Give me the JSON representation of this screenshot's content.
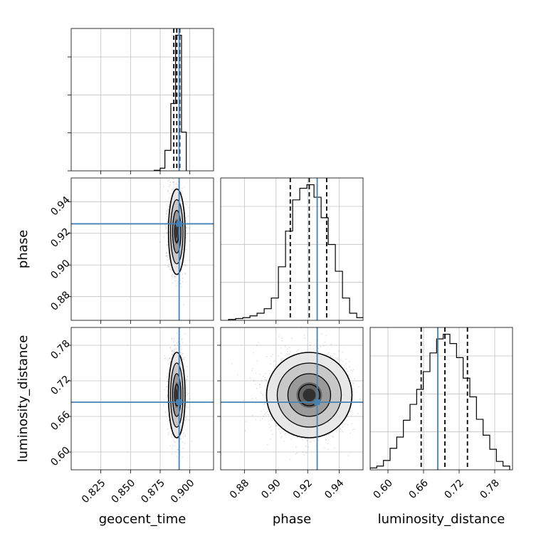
{
  "chart_data": {
    "type": "corner",
    "parameters": [
      "geocent_time",
      "phase",
      "luminosity_distance"
    ],
    "axes": {
      "geocent_time": {
        "range": [
          0.8,
          0.92
        ],
        "ticks": [
          0.825,
          0.85,
          0.875,
          0.9
        ],
        "tick_labels": [
          "0.825",
          "0.850",
          "0.875",
          "0.900"
        ],
        "xlabel": "geocent_time"
      },
      "phase": {
        "range": [
          0.865,
          0.955
        ],
        "ticks": [
          0.88,
          0.9,
          0.92,
          0.94
        ],
        "tick_labels": [
          "0.88",
          "0.90",
          "0.92",
          "0.94"
        ],
        "xlabel": "phase",
        "ylabel": "phase"
      },
      "luminosity_distance": {
        "range": [
          0.57,
          0.81
        ],
        "ticks": [
          0.6,
          0.66,
          0.72,
          0.78
        ],
        "tick_labels": [
          "0.60",
          "0.66",
          "0.72",
          "0.78"
        ],
        "xlabel": "luminosity_distance",
        "ylabel": "luminosity_distance"
      }
    },
    "truths": {
      "geocent_time": 0.891,
      "phase": 0.926,
      "luminosity_distance": 0.684
    },
    "quantiles": {
      "geocent_time": [
        0.8865,
        0.889,
        0.8915
      ],
      "phase": [
        0.909,
        0.921,
        0.932
      ],
      "luminosity_distance": [
        0.656,
        0.696,
        0.734
      ]
    },
    "histograms": {
      "geocent_time": {
        "edges": [
          0.87,
          0.875,
          0.879,
          0.884,
          0.888,
          0.893,
          0.897
        ],
        "counts": [
          1,
          5,
          38,
          125,
          252,
          72
        ]
      },
      "phase": {
        "edges": [
          0.87,
          0.8745,
          0.879,
          0.8835,
          0.888,
          0.8925,
          0.897,
          0.9015,
          0.906,
          0.9105,
          0.915,
          0.9195,
          0.924,
          0.9285,
          0.933,
          0.9375,
          0.942,
          0.9465,
          0.951,
          0.9555
        ],
        "counts": [
          1,
          2,
          3,
          5,
          8,
          13,
          25,
          60,
          100,
          135,
          148,
          152,
          138,
          115,
          85,
          55,
          25,
          8,
          3
        ]
      },
      "luminosity_distance": {
        "edges": [
          0.57,
          0.5812,
          0.5924,
          0.6036,
          0.6148,
          0.626,
          0.6372,
          0.6484,
          0.6596,
          0.6708,
          0.682,
          0.6932,
          0.7044,
          0.7156,
          0.7268,
          0.738,
          0.7492,
          0.7604,
          0.7716,
          0.7828,
          0.794,
          0.8052
        ],
        "counts": [
          2,
          4,
          10,
          23,
          35,
          53,
          70,
          86,
          105,
          125,
          140,
          145,
          135,
          120,
          98,
          78,
          54,
          37,
          22,
          9,
          4
        ]
      }
    },
    "density_2d": [
      {
        "x": "geocent_time",
        "y": "phase",
        "center": [
          0.889,
          0.921
        ],
        "spread": [
          0.0035,
          0.0135
        ]
      },
      {
        "x": "geocent_time",
        "y": "luminosity_distance",
        "center": [
          0.889,
          0.696
        ],
        "spread": [
          0.0035,
          0.036
        ]
      },
      {
        "x": "phase",
        "y": "luminosity_distance",
        "center": [
          0.921,
          0.696
        ],
        "spread": [
          0.0135,
          0.036
        ]
      }
    ],
    "colors": {
      "truth": "#4682b4",
      "hist": "#000000",
      "grid": "#c0c0c0",
      "samples": "#000000"
    }
  }
}
